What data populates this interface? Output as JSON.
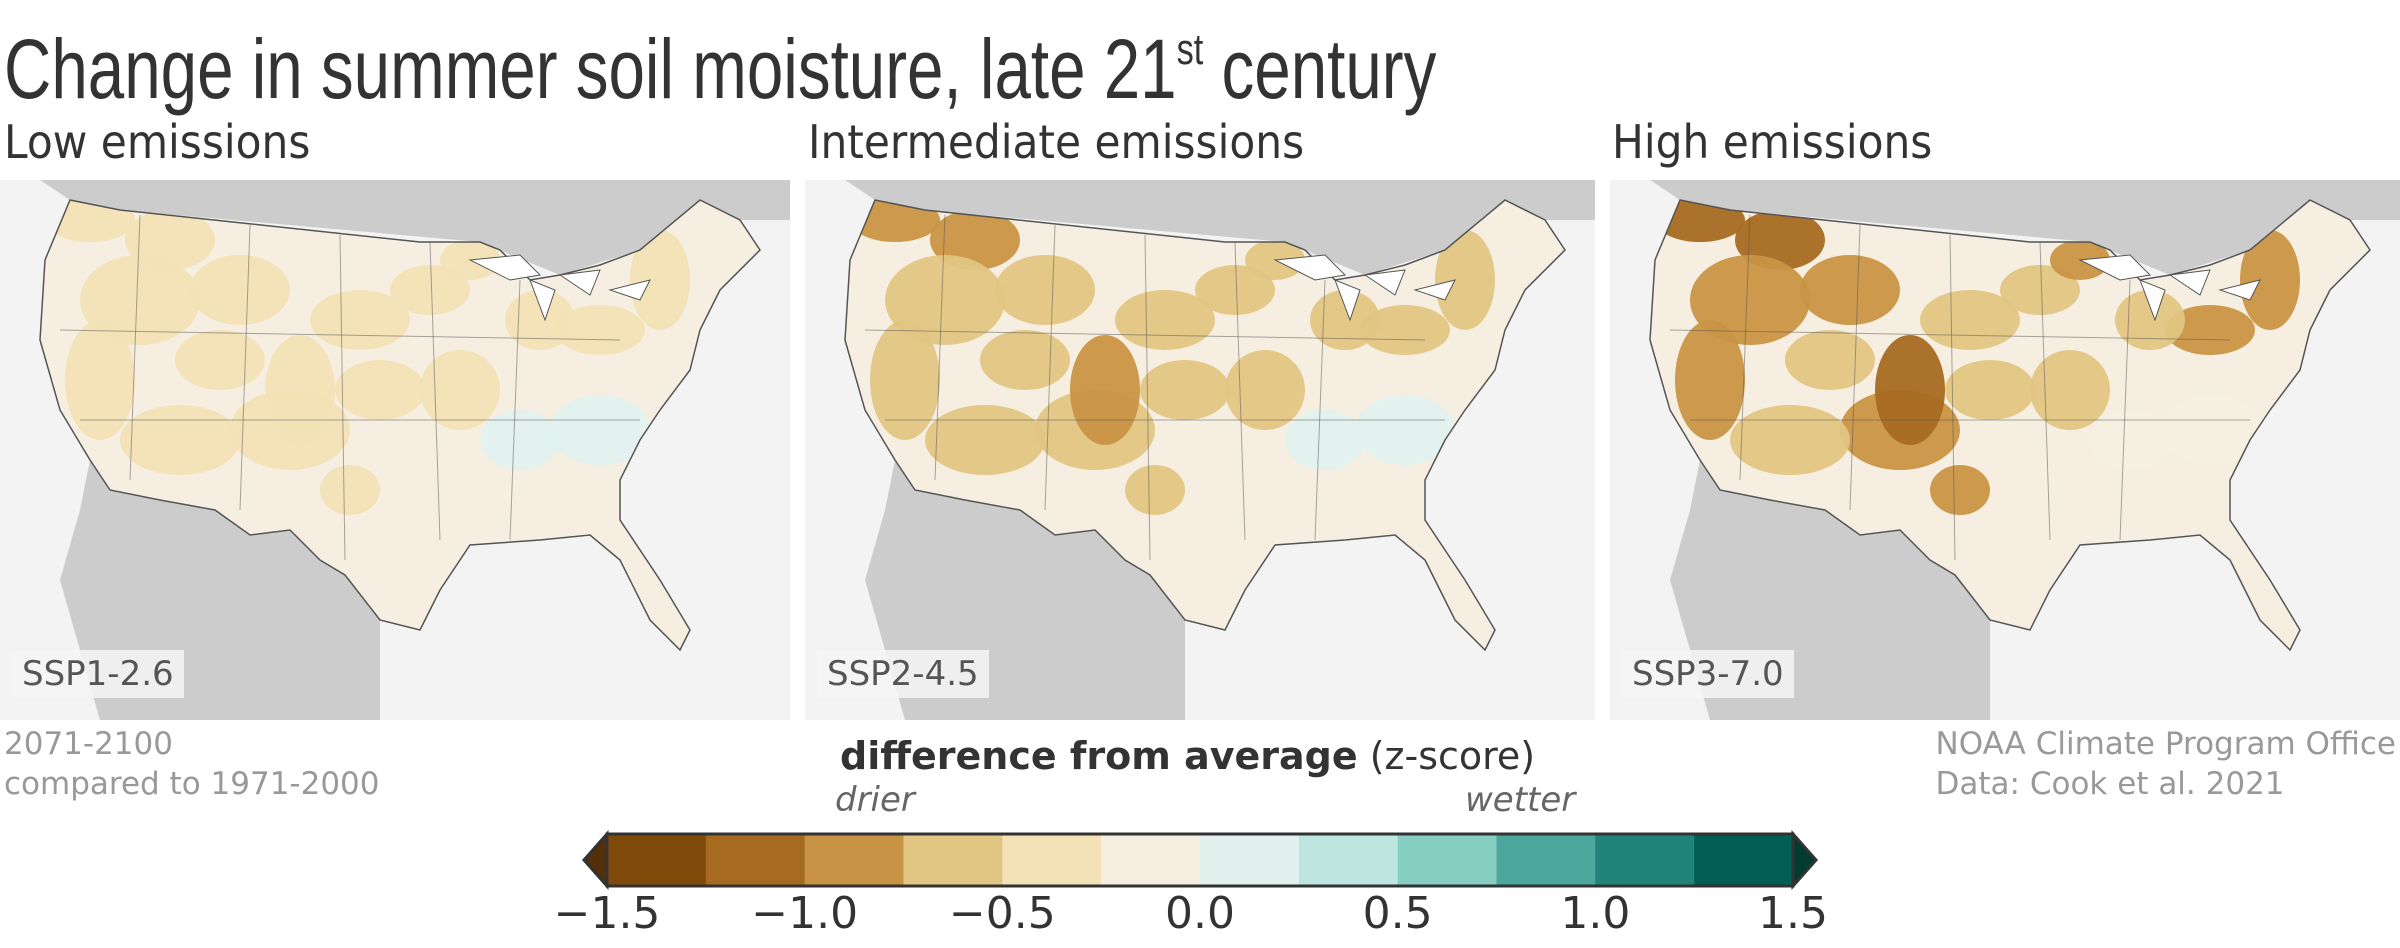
{
  "title": {
    "main": "Change in summer soil moisture, late 21",
    "superscript": "st",
    "suffix": " century"
  },
  "panels": [
    {
      "title": "Low emissions",
      "scenario": "SSP1-2.6",
      "intensity": 0.35
    },
    {
      "title": "Intermediate emissions",
      "scenario": "SSP2-4.5",
      "intensity": 0.6
    },
    {
      "title": "High emissions",
      "scenario": "SSP3-7.0",
      "intensity": 1.0
    }
  ],
  "notes": {
    "period_line1": "2071-2100",
    "period_line2": "compared to 1971-2000",
    "credit_line1": "NOAA Climate Program Office",
    "credit_line2": "Data: Cook et al. 2021"
  },
  "legend": {
    "title_bold": "difference from average",
    "title_unit": "(z-score)",
    "left_label": "drier",
    "right_label": "wetter",
    "range": [
      -1.5,
      1.5
    ],
    "step": 0.25,
    "ticks": [
      "−1.5",
      "−1.0",
      "−0.5",
      "0.0",
      "0.5",
      "1.0",
      "1.5"
    ],
    "colors": [
      "#804a0b",
      "#a66a21",
      "#c99345",
      "#e1c583",
      "#f3e2b6",
      "#f6efe1",
      "#e2f1ee",
      "#bde6e1",
      "#86cfc2",
      "#4ca79d",
      "#20847a",
      "#015f55"
    ],
    "under_color": "#54300a",
    "over_color": "#003c30"
  },
  "map_colors": {
    "land_other": "#cccccc",
    "ocean": "#f3f3f3",
    "lakes": "#ffffff",
    "borders": "#555555"
  }
}
